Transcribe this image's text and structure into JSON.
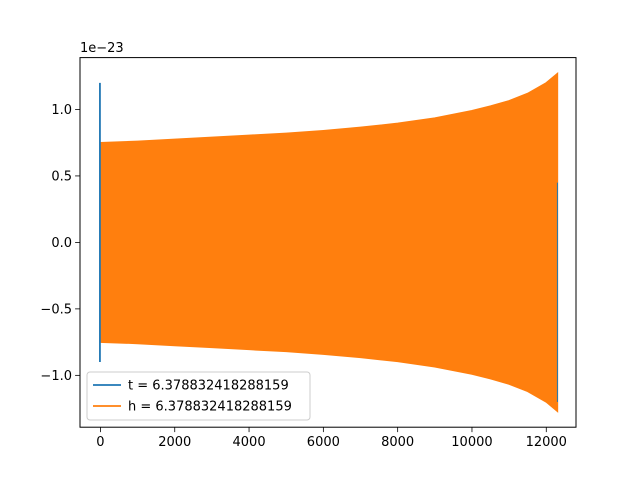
{
  "chart_data": {
    "type": "line",
    "offset_label": "1e−23",
    "xlim": [
      -550,
      12800
    ],
    "ylim": [
      -1.39,
      1.39
    ],
    "x_ticks": [
      {
        "value": 0,
        "label": "0"
      },
      {
        "value": 2000,
        "label": "2000"
      },
      {
        "value": 4000,
        "label": "4000"
      },
      {
        "value": 6000,
        "label": "6000"
      },
      {
        "value": 8000,
        "label": "8000"
      },
      {
        "value": 10000,
        "label": "10000"
      },
      {
        "value": 12000,
        "label": "12000"
      }
    ],
    "y_ticks": [
      {
        "value": -1.0,
        "label": "−1.0"
      },
      {
        "value": -0.5,
        "label": "−0.5"
      },
      {
        "value": 0.0,
        "label": "0.0"
      },
      {
        "value": 0.5,
        "label": "0.5"
      },
      {
        "value": 1.0,
        "label": "1.0"
      }
    ],
    "grid": false,
    "legend_position": "lower-left",
    "series": [
      {
        "name": "t = 6.378832418288159",
        "color": "#1f77b4",
        "style": "spike",
        "x": [
          0,
          0,
          0
        ],
        "y": [
          1.2,
          -0.05,
          -0.9
        ]
      },
      {
        "name": "h = 6.378832418288159",
        "color": "#ff7f0e",
        "style": "dense-oscillation-envelope",
        "x": [
          0,
          1000,
          2000,
          3000,
          4000,
          5000,
          6000,
          7000,
          8000,
          9000,
          10000,
          10500,
          11000,
          11500,
          12000,
          12300
        ],
        "upper": [
          0.75,
          0.76,
          0.775,
          0.79,
          0.805,
          0.82,
          0.84,
          0.865,
          0.895,
          0.935,
          0.99,
          1.025,
          1.065,
          1.12,
          1.2,
          1.27
        ],
        "lower": [
          -0.75,
          -0.76,
          -0.775,
          -0.79,
          -0.805,
          -0.82,
          -0.84,
          -0.865,
          -0.895,
          -0.935,
          -0.99,
          -1.025,
          -1.065,
          -1.12,
          -1.2,
          -1.27
        ]
      }
    ]
  }
}
